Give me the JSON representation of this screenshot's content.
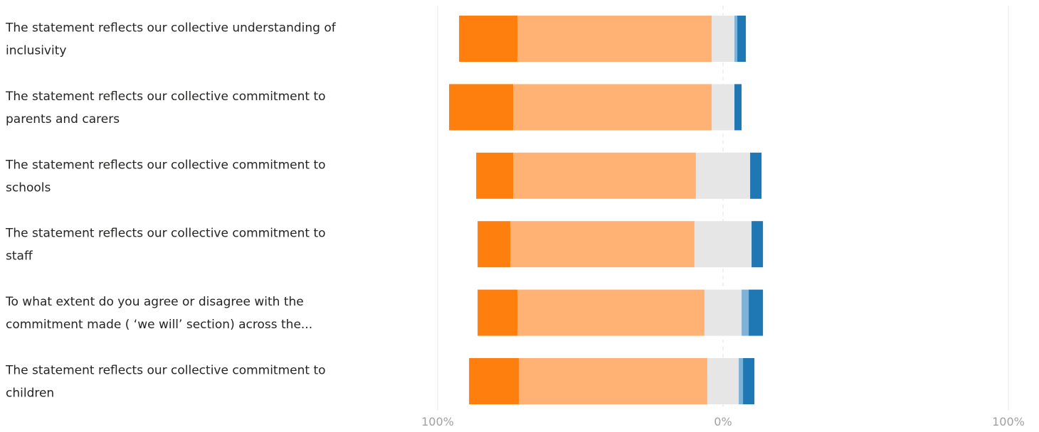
{
  "chart_data": {
    "type": "bar",
    "orientation": "horizontal",
    "stacked": "diverging",
    "title": "",
    "xlabel": "",
    "ylabel": "",
    "xlim": [
      -100,
      100
    ],
    "x_tick_labels": [
      "100%",
      "0%",
      "100%"
    ],
    "grid": "vertical gridlines at -100%, 0% and 100%",
    "legend": "none",
    "categories": [
      [
        "The statement reflects our collective understanding of",
        "inclusivity"
      ],
      [
        "The statement reflects our collective commitment to",
        "parents and carers"
      ],
      [
        "The statement reflects our collective commitment to",
        "schools"
      ],
      [
        "The statement reflects our collective commitment to",
        "staff"
      ],
      [
        "To what extent do you agree or disagree with the",
        "commitment made ( ‘we will’ section) across the..."
      ],
      [
        "The statement reflects our collective commitment to",
        "children"
      ]
    ],
    "series": [
      {
        "color": "#ff7f0e",
        "side": "left",
        "values": [
          20.5,
          22.5,
          13.0,
          11.5,
          14.0,
          17.5
        ]
      },
      {
        "color": "#ffb273",
        "side": "left",
        "values": [
          68.0,
          69.5,
          64.0,
          64.5,
          65.5,
          66.0
        ]
      },
      {
        "color": "#e6e6e6",
        "side": "split",
        "values": [
          8.0,
          8.0,
          19.0,
          20.0,
          13.0,
          11.0
        ]
      },
      {
        "color": "#7fb2d7",
        "side": "right",
        "values": [
          1.0,
          0.0,
          0.0,
          0.0,
          2.5,
          1.5
        ]
      },
      {
        "color": "#1f77b4",
        "side": "right",
        "values": [
          3.0,
          2.5,
          4.0,
          4.0,
          5.0,
          4.0
        ]
      }
    ]
  }
}
